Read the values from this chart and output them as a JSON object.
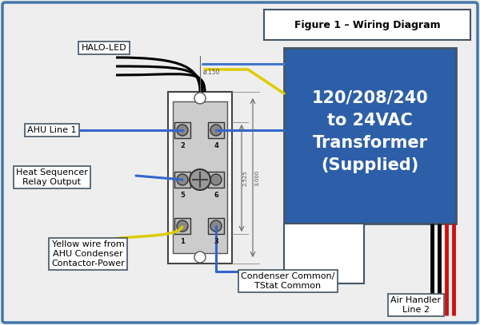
{
  "bg_color": "#eeeeee",
  "border_color": "#4477aa",
  "title_text": "Figure 1 – Wiring Diagram",
  "transformer_text": "120/208/240\nto 24VAC\nTransformer\n(Supplied)",
  "transformer_bg": "#2d5fa8",
  "transformer_text_color": "white",
  "label_halo": "HALO-LED",
  "label_ahu1": "AHU Line 1",
  "label_heat": "Heat Sequencer\nRelay Output",
  "label_yellow": "Yellow wire from\nAHU Condenser\nContactor-Power",
  "label_condenser": "Condenser Common/\nTStat Common",
  "label_airhandler": "Air Handler\nLine 2",
  "figsize": [
    6.0,
    4.07
  ],
  "dpi": 100
}
